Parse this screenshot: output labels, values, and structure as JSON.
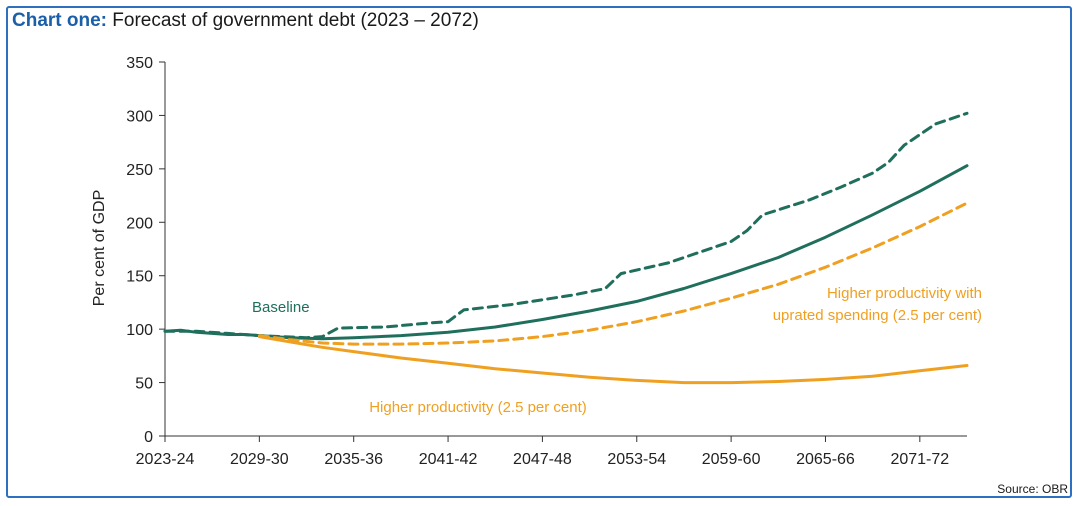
{
  "header": {
    "title_bold": "Chart one:",
    "title_rest": " Forecast of government debt (2023 – 2072)"
  },
  "source": "Source: OBR",
  "colors": {
    "frame": "#2f6fc0",
    "title_accent": "#1b5fa8",
    "green": "#1f6f5c",
    "orange": "#f0a020"
  },
  "chart_data": {
    "type": "line",
    "title": "Forecast of government debt (2023 – 2072)",
    "xlabel": "",
    "ylabel": "Per cent of GDP",
    "ylim": [
      0,
      350
    ],
    "yticks": [
      "0",
      "50",
      "100",
      "150",
      "200",
      "250",
      "300",
      "350"
    ],
    "x_start": 2023,
    "x_end": 2074,
    "x_ticks": [
      {
        "year": 2023,
        "label": "2023-24"
      },
      {
        "year": 2029,
        "label": "2029-30"
      },
      {
        "year": 2035,
        "label": "2035-36"
      },
      {
        "year": 2041,
        "label": "2041-42"
      },
      {
        "year": 2047,
        "label": "2047-48"
      },
      {
        "year": 2053,
        "label": "2053-54"
      },
      {
        "year": 2059,
        "label": "2059-60"
      },
      {
        "year": 2065,
        "label": "2065-66"
      },
      {
        "year": 2071,
        "label": "2071-72"
      }
    ],
    "series": [
      {
        "name": "Baseline",
        "color": "#1f6f5c",
        "dash": false,
        "x": [
          2023,
          2024,
          2025,
          2026,
          2027,
          2028,
          2029,
          2031,
          2033,
          2035,
          2038,
          2041,
          2044,
          2047,
          2050,
          2053,
          2056,
          2059,
          2062,
          2065,
          2068,
          2071,
          2074
        ],
        "y": [
          98,
          99,
          97,
          96,
          95,
          95,
          94,
          92,
          91,
          92,
          94,
          97,
          102,
          109,
          117,
          126,
          138,
          152,
          167,
          186,
          207,
          229,
          253
        ]
      },
      {
        "name": "Baseline (upper, dashed)",
        "color": "#1f6f5c",
        "dash": true,
        "x": [
          2023,
          2025,
          2027,
          2029,
          2032,
          2033,
          2034,
          2037,
          2040,
          2041,
          2042,
          2045,
          2049,
          2051,
          2052,
          2055,
          2059,
          2060,
          2061,
          2064,
          2066,
          2068,
          2069,
          2070,
          2072,
          2074
        ],
        "y": [
          98,
          98,
          96,
          94,
          92,
          93,
          101,
          102,
          106,
          107,
          118,
          123,
          132,
          138,
          152,
          162,
          182,
          192,
          207,
          221,
          233,
          246,
          256,
          272,
          292,
          302
        ]
      },
      {
        "name": "Higher productivity with uprated spending (2.5 per cent)",
        "color": "#f0a020",
        "dash": true,
        "x": [
          2029,
          2031,
          2033,
          2035,
          2038,
          2041,
          2044,
          2047,
          2050,
          2053,
          2056,
          2059,
          2062,
          2065,
          2068,
          2071,
          2074
        ],
        "y": [
          94,
          90,
          87,
          86,
          86,
          87,
          89,
          93,
          99,
          107,
          117,
          129,
          142,
          158,
          176,
          196,
          218
        ]
      },
      {
        "name": "Higher productivity (2.5 per cent)",
        "color": "#f0a020",
        "dash": false,
        "x": [
          2029,
          2031,
          2033,
          2035,
          2038,
          2041,
          2044,
          2047,
          2050,
          2053,
          2056,
          2059,
          2062,
          2065,
          2068,
          2071,
          2074
        ],
        "y": [
          93,
          88,
          83,
          79,
          73,
          68,
          63,
          59,
          55,
          52,
          50,
          50,
          51,
          53,
          56,
          61,
          66
        ]
      }
    ],
    "annotations": [
      {
        "text": "Baseline",
        "color": "#1f6f5c"
      },
      {
        "text": "Higher productivity with",
        "color": "#f0a020"
      },
      {
        "text": "uprated spending (2.5 per cent)",
        "color": "#f0a020"
      },
      {
        "text": "Higher productivity (2.5 per cent)",
        "color": "#f0a020"
      }
    ]
  }
}
